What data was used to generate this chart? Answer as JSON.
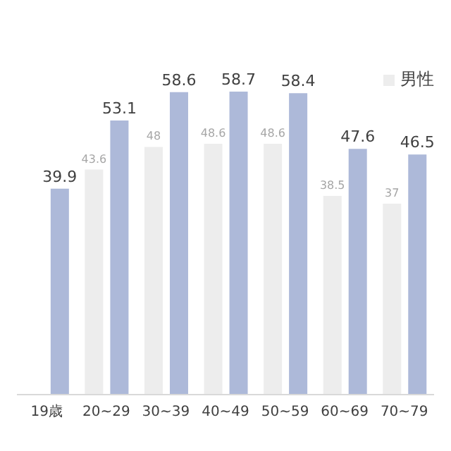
{
  "chart_data": {
    "type": "bar",
    "categories": [
      "19歳",
      "20~29",
      "30~39",
      "40~49",
      "50~59",
      "60~69",
      "70~79"
    ],
    "series": [
      {
        "name": "男性",
        "color": "#ededed",
        "values": [
          null,
          43.6,
          48,
          48.6,
          48.6,
          38.5,
          37
        ]
      },
      {
        "color": "#adb9d9",
        "values": [
          39.9,
          53.1,
          58.6,
          58.7,
          58.4,
          47.6,
          46.5
        ]
      }
    ],
    "tick_labels": "x",
    "data_labels": true,
    "legend": "top right"
  }
}
